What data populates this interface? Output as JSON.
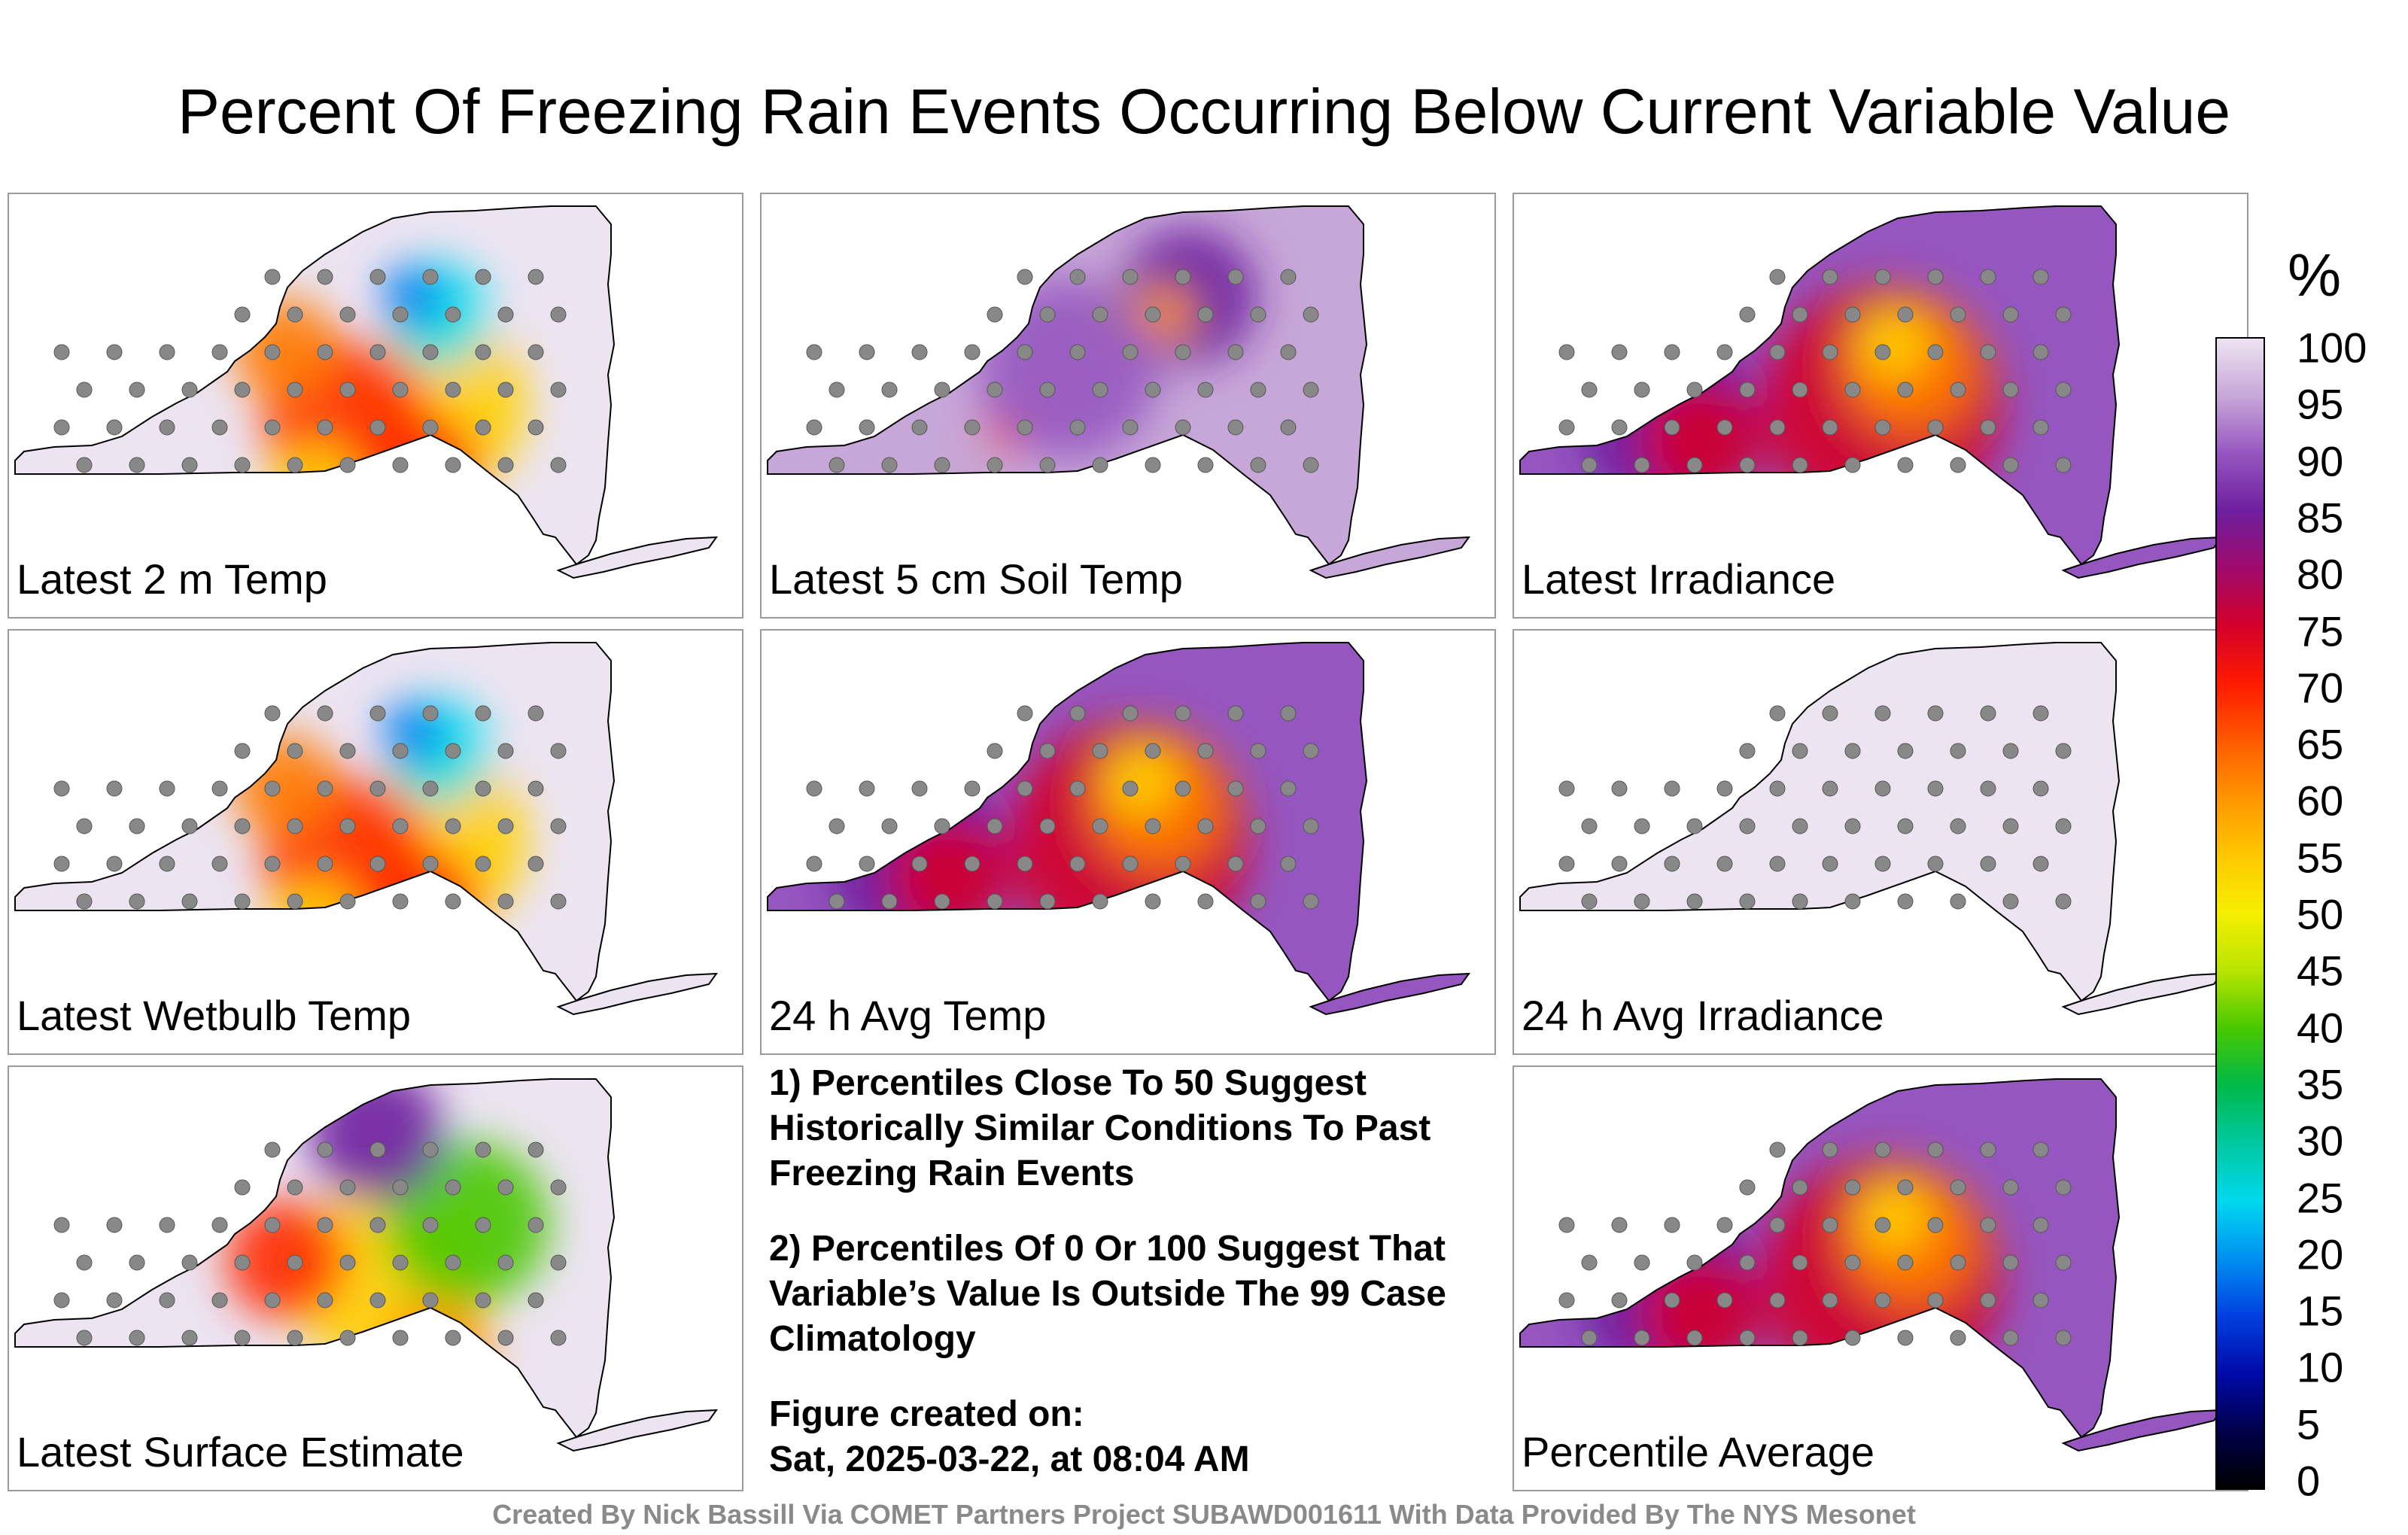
{
  "title": "Percent Of Freezing Rain Events Occurring Below Current Variable Value",
  "panels": [
    {
      "label": "Latest 2 m Temp",
      "scheme": "mixed"
    },
    {
      "label": "Latest 5 cm Soil Temp",
      "scheme": "high"
    },
    {
      "label": "Latest Irradiance",
      "scheme": "warm"
    },
    {
      "label": "Latest Wetbulb Temp",
      "scheme": "mixed"
    },
    {
      "label": "24 h Avg Temp",
      "scheme": "warm"
    },
    {
      "label": "24 h Avg Irradiance",
      "scheme": "max"
    },
    {
      "label": "Latest Surface Estimate",
      "scheme": "low"
    },
    {
      "label": "Percentile Average",
      "scheme": "warm"
    }
  ],
  "notes": {
    "p1": "1) Percentiles Close To 50 Suggest Historically Similar Conditions To Past Freezing Rain Events",
    "p2": "2) Percentiles Of 0 Or 100 Suggest That Variable’s Value Is Outside The 99 Case Climatology",
    "p3_line1": "Figure created on:",
    "p3_line2": "Sat, 2025-03-22, at 08:04 AM"
  },
  "colorbar": {
    "unit": "%",
    "ticks": [
      "100",
      "95",
      "90",
      "85",
      "80",
      "75",
      "70",
      "65",
      "60",
      "55",
      "50",
      "45",
      "40",
      "35",
      "30",
      "25",
      "20",
      "15",
      "10",
      "5",
      "0"
    ],
    "colors": [
      "#ece4f1",
      "#c7a7d8",
      "#9656c0",
      "#6e1f9e",
      "#a0096b",
      "#d4002a",
      "#ff1a00",
      "#ff5a00",
      "#ff9600",
      "#ffc800",
      "#f5ef00",
      "#b8e400",
      "#48c800",
      "#00b84a",
      "#00c8a0",
      "#00d8ef",
      "#0090f0",
      "#0040e0",
      "#000aa8",
      "#00004a",
      "#000000"
    ]
  },
  "footer": "Created By Nick Bassill Via COMET Partners Project SUBAWD001611 With Data Provided By The NYS Mesonet"
}
